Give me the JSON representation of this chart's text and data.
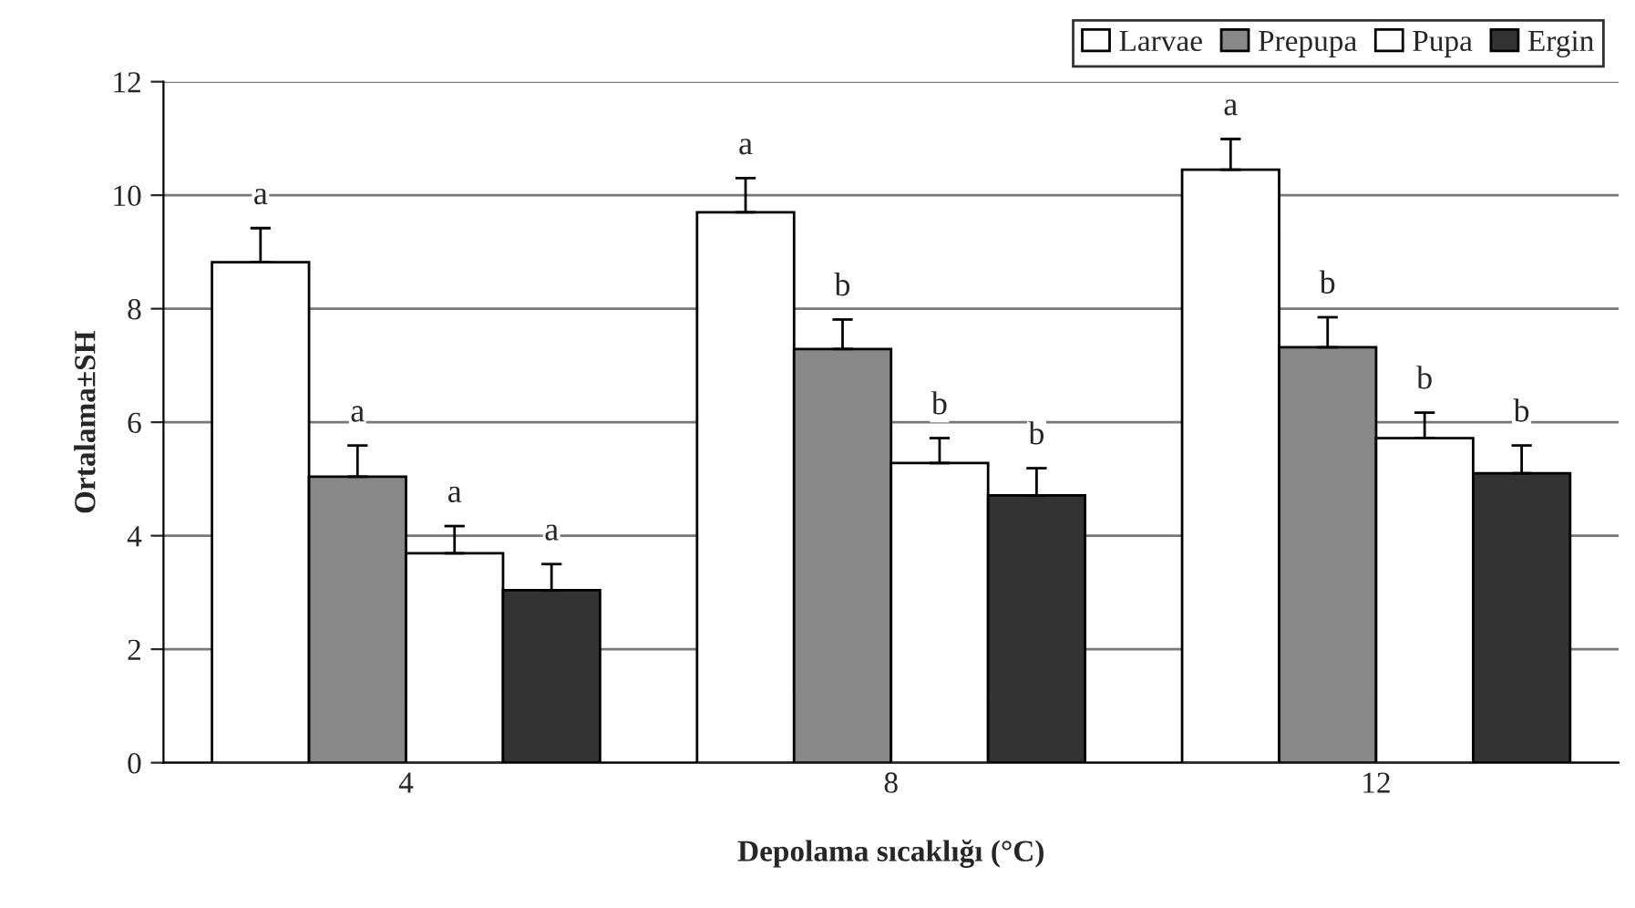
{
  "chart_data": {
    "type": "bar",
    "xlabel": "Depolama sıcaklığı (°C)",
    "ylabel": "Ortalama±SH",
    "categories": [
      "4",
      "8",
      "12"
    ],
    "series": [
      {
        "name": "Larvae",
        "color": "#ffffff",
        "values": [
          8.82,
          9.7,
          10.45
        ],
        "errors": [
          0.6,
          0.6,
          0.54
        ],
        "value_labels": [
          "a",
          "a",
          "a"
        ]
      },
      {
        "name": "Prepupa",
        "color": "#888888",
        "values": [
          5.04,
          7.29,
          7.32
        ],
        "errors": [
          0.55,
          0.52,
          0.53
        ],
        "value_labels": [
          "a",
          "b",
          "b"
        ]
      },
      {
        "name": "Pupa",
        "color": "#ffffff",
        "values": [
          3.69,
          5.28,
          5.72
        ],
        "errors": [
          0.48,
          0.44,
          0.45
        ],
        "value_labels": [
          "a",
          "b",
          "b"
        ]
      },
      {
        "name": "Ergin",
        "color": "#333333",
        "values": [
          3.04,
          4.71,
          5.1
        ],
        "errors": [
          0.46,
          0.48,
          0.49
        ],
        "value_labels": [
          "a",
          "b",
          "b"
        ]
      }
    ],
    "ylim": [
      0,
      12
    ],
    "yticks": [
      0,
      2,
      4,
      6,
      8,
      10,
      12
    ],
    "grid": "y",
    "legend": "top right"
  }
}
